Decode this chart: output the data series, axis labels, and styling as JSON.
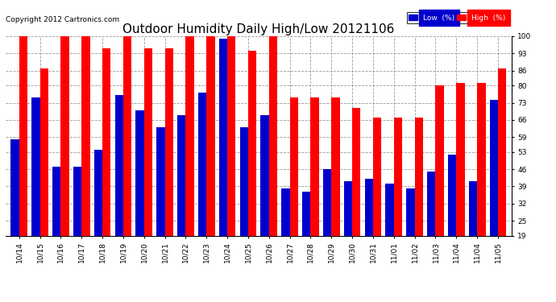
{
  "title": "Outdoor Humidity Daily High/Low 20121106",
  "copyright": "Copyright 2012 Cartronics.com",
  "legend_low": "Low  (%)",
  "legend_high": "High  (%)",
  "dates": [
    "10/14",
    "10/15",
    "10/16",
    "10/17",
    "10/18",
    "10/19",
    "10/20",
    "10/21",
    "10/22",
    "10/23",
    "10/24",
    "10/25",
    "10/26",
    "10/27",
    "10/28",
    "10/29",
    "10/30",
    "10/31",
    "11/01",
    "11/02",
    "11/03",
    "11/04",
    "11/04",
    "11/05"
  ],
  "high": [
    100,
    87,
    100,
    100,
    95,
    100,
    95,
    95,
    100,
    100,
    100,
    94,
    100,
    75,
    75,
    75,
    71,
    67,
    67,
    67,
    80,
    81,
    81,
    87
  ],
  "low": [
    58,
    75,
    47,
    47,
    54,
    76,
    70,
    63,
    68,
    77,
    99,
    63,
    68,
    38,
    37,
    46,
    41,
    42,
    40,
    38,
    45,
    52,
    41,
    74
  ],
  "ylim_min": 19,
  "ylim_max": 100,
  "yticks": [
    19,
    25,
    32,
    39,
    46,
    53,
    59,
    66,
    73,
    80,
    86,
    93,
    100
  ],
  "bar_width": 0.4,
  "blue": "#0000cc",
  "red": "#ff0000",
  "bg_color": "#ffffff",
  "grid_color": "#999999",
  "title_fontsize": 11,
  "tick_fontsize": 6.5,
  "copyright_fontsize": 6.5
}
